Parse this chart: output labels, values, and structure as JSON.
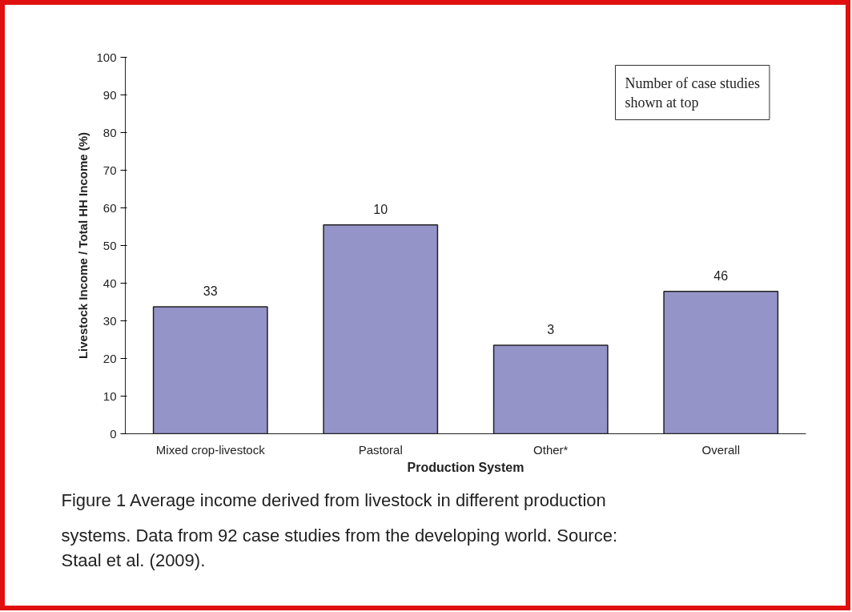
{
  "chart_data": {
    "type": "bar",
    "xlabel": "Production System",
    "ylabel": "Livestock Income / Total HH Income (%)",
    "categories": [
      "Mixed crop-livestock",
      "Pastoral",
      "Other*",
      "Overall"
    ],
    "values": [
      33.7,
      55.5,
      23.5,
      37.8
    ],
    "color": "#9494c8",
    "ylim": [
      0,
      100
    ],
    "yticks": [
      0,
      10,
      20,
      30,
      40,
      50,
      60,
      70,
      80,
      90,
      100
    ],
    "grid": false,
    "annotations": [
      {
        "text": "33",
        "x": "Mixed crop-livestock",
        "y": 33.7
      },
      {
        "text": "10",
        "x": "Pastoral",
        "y": 55.5
      },
      {
        "text": "3",
        "x": "Other*",
        "y": 23.5
      },
      {
        "text": "46",
        "x": "Overall",
        "y": 37.8
      },
      "Number of case studies shown at top",
      "Figure 1  Average income derived from livestock in different production systems. Data from 92 case studies from the developing world. Source: Staal et al. (2009)."
    ]
  }
}
